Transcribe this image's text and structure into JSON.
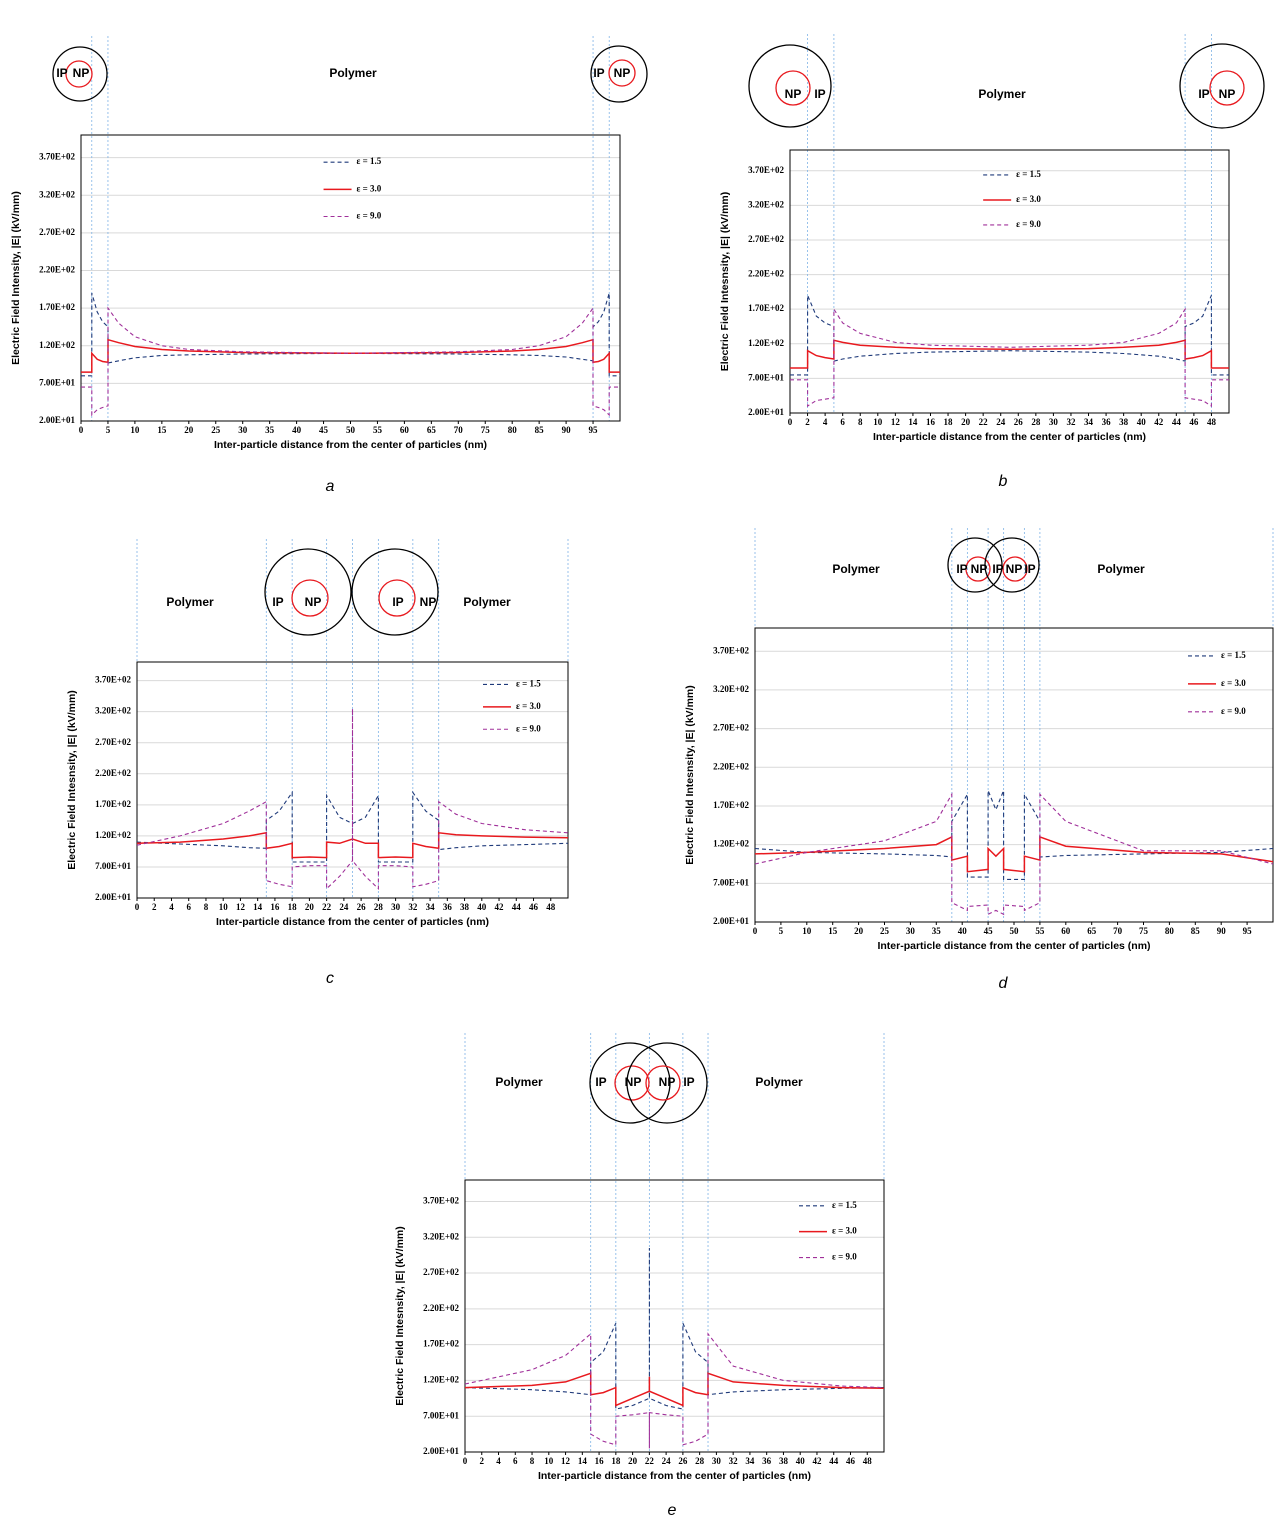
{
  "chart_data": [
    {
      "type": "line",
      "caption": "a",
      "annotations": [
        "IP",
        "NP",
        "Polymer",
        "IP",
        "NP"
      ],
      "xlabel": "Inter-particle distance from the center of particles (nm)",
      "ylabel": "Electric Field Intensity, |E| (kV/mm)",
      "xlim": [
        0,
        100
      ],
      "xticks": [
        0,
        5,
        10,
        15,
        20,
        25,
        30,
        35,
        40,
        45,
        50,
        55,
        60,
        65,
        70,
        75,
        80,
        85,
        90,
        95
      ],
      "ylim": [
        20,
        400
      ],
      "yticks": [
        {
          "value": 20,
          "label": "2.00E+01"
        },
        {
          "value": 70,
          "label": "7.00E+01"
        },
        {
          "value": 120,
          "label": "1.20E+02"
        },
        {
          "value": 170,
          "label": "1.70E+02"
        },
        {
          "value": 220,
          "label": "2.20E+02"
        },
        {
          "value": 270,
          "label": "2.70E+02"
        },
        {
          "value": 320,
          "label": "3.20E+02"
        },
        {
          "value": 370,
          "label": "3.70E+02"
        }
      ],
      "grid": true,
      "legend": "upper center",
      "x": [
        0,
        2,
        2,
        3,
        4,
        5,
        5,
        7,
        10,
        15,
        20,
        30,
        50,
        70,
        80,
        85,
        90,
        93,
        95,
        95,
        96,
        97,
        98,
        98,
        100
      ],
      "series": [
        {
          "name": "ε = 1.5",
          "color": "#1f3a7a",
          "linestyle": "dashed",
          "values": [
            80,
            80,
            190,
            165,
            152,
            145,
            97,
            100,
            104,
            107,
            108,
            109,
            110,
            109,
            108,
            107,
            105,
            102,
            100,
            145,
            152,
            165,
            190,
            80,
            80
          ]
        },
        {
          "name": "ε = 3.0",
          "color": "#e8191e",
          "linestyle": "solid",
          "values": [
            85,
            85,
            110,
            102,
            99,
            98,
            128,
            124,
            119,
            115,
            113,
            111,
            110,
            111,
            113,
            115,
            119,
            124,
            128,
            98,
            99,
            102,
            110,
            85,
            85
          ]
        },
        {
          "name": "ε = 9.0",
          "color": "#a0309a",
          "linestyle": "dashed",
          "values": [
            65,
            65,
            28,
            35,
            38,
            40,
            170,
            150,
            132,
            120,
            115,
            112,
            110,
            112,
            115,
            120,
            132,
            150,
            170,
            40,
            38,
            35,
            28,
            65,
            65
          ]
        }
      ]
    },
    {
      "type": "line",
      "caption": "b",
      "annotations": [
        "NP",
        "IP",
        "Polymer",
        "IP",
        "NP"
      ],
      "xlabel": "Inter-particle distance from the center of particles (nm)",
      "ylabel": "Electric Field Intesnsity, |E| (kV/mm)",
      "xlim": [
        0,
        50
      ],
      "xticks": [
        0,
        2,
        4,
        6,
        8,
        10,
        12,
        14,
        16,
        18,
        20,
        22,
        24,
        26,
        28,
        30,
        32,
        34,
        36,
        38,
        40,
        42,
        44,
        46,
        48
      ],
      "ylim": [
        20,
        400
      ],
      "yticks": [
        {
          "value": 20,
          "label": "2.00E+01"
        },
        {
          "value": 70,
          "label": "7.00E+01"
        },
        {
          "value": 120,
          "label": "1.20E+02"
        },
        {
          "value": 170,
          "label": "1.70E+02"
        },
        {
          "value": 220,
          "label": "2.20E+02"
        },
        {
          "value": 270,
          "label": "2.70E+02"
        },
        {
          "value": 320,
          "label": "3.20E+02"
        },
        {
          "value": 370,
          "label": "3.70E+02"
        }
      ],
      "grid": true,
      "legend": "upper center",
      "x": [
        0,
        2,
        2,
        3,
        4,
        5,
        5,
        6,
        8,
        12,
        16,
        25,
        34,
        38,
        42,
        44,
        45,
        45,
        46,
        47,
        48,
        48,
        50
      ],
      "series": [
        {
          "name": "ε = 1.5",
          "color": "#1f3a7a",
          "linestyle": "dashed",
          "values": [
            75,
            75,
            190,
            160,
            150,
            145,
            95,
            98,
            102,
            106,
            108,
            110,
            108,
            106,
            102,
            98,
            95,
            145,
            150,
            160,
            190,
            75,
            75
          ]
        },
        {
          "name": "ε = 3.0",
          "color": "#e8191e",
          "linestyle": "solid",
          "values": [
            85,
            85,
            110,
            103,
            100,
            98,
            125,
            122,
            118,
            115,
            113,
            112,
            113,
            115,
            118,
            122,
            125,
            98,
            100,
            103,
            110,
            85,
            85
          ]
        },
        {
          "name": "ε = 9.0",
          "color": "#a0309a",
          "linestyle": "dashed",
          "values": [
            68,
            68,
            30,
            38,
            40,
            42,
            170,
            150,
            135,
            122,
            118,
            115,
            118,
            122,
            135,
            150,
            170,
            42,
            40,
            38,
            30,
            68,
            68
          ]
        }
      ]
    },
    {
      "type": "line",
      "caption": "c",
      "annotations": [
        "Polymer",
        "IP",
        "NP",
        "IP",
        "NP",
        "Polymer"
      ],
      "xlabel": "Inter-particle distance from the center of particles (nm)",
      "ylabel": "Electric Field Intesnsity, |E| (kV/mm)",
      "xlim": [
        0,
        50
      ],
      "xticks": [
        0,
        2,
        4,
        6,
        8,
        10,
        12,
        14,
        16,
        18,
        20,
        22,
        24,
        26,
        28,
        30,
        32,
        34,
        36,
        38,
        40,
        42,
        44,
        46,
        48
      ],
      "ylim": [
        20,
        400
      ],
      "yticks": [
        {
          "value": 20,
          "label": "2.00E+01"
        },
        {
          "value": 70,
          "label": "7.00E+01"
        },
        {
          "value": 120,
          "label": "1.20E+02"
        },
        {
          "value": 170,
          "label": "1.70E+02"
        },
        {
          "value": 220,
          "label": "2.20E+02"
        },
        {
          "value": 270,
          "label": "2.70E+02"
        },
        {
          "value": 320,
          "label": "3.20E+02"
        },
        {
          "value": 370,
          "label": "3.70E+02"
        }
      ],
      "grid": true,
      "legend": "upper right",
      "x": [
        0,
        5,
        10,
        13,
        15,
        15,
        16.5,
        18,
        18,
        20,
        22,
        22,
        23.5,
        25,
        25,
        25,
        26.5,
        28,
        28,
        30,
        32,
        32,
        33.5,
        35,
        35,
        37,
        40,
        45,
        50
      ],
      "series": [
        {
          "name": "ε = 1.5",
          "color": "#1f3a7a",
          "linestyle": "dashed",
          "values": [
            110,
            107,
            104,
            101,
            100,
            145,
            160,
            190,
            78,
            78,
            78,
            185,
            150,
            140,
            140,
            140,
            150,
            185,
            78,
            78,
            78,
            190,
            160,
            145,
            98,
            101,
            104,
            106,
            108
          ]
        },
        {
          "name": "ε = 3.0",
          "color": "#e8191e",
          "linestyle": "solid",
          "values": [
            108,
            110,
            115,
            120,
            125,
            100,
            103,
            108,
            85,
            86,
            85,
            110,
            108,
            115,
            115,
            115,
            108,
            108,
            85,
            86,
            85,
            108,
            103,
            100,
            125,
            122,
            120,
            118,
            117
          ]
        },
        {
          "name": "ε = 9.0",
          "color": "#a0309a",
          "linestyle": "dashed",
          "values": [
            105,
            120,
            140,
            160,
            175,
            48,
            42,
            38,
            70,
            72,
            72,
            35,
            55,
            80,
            325,
            80,
            55,
            35,
            72,
            72,
            70,
            38,
            42,
            48,
            175,
            155,
            140,
            130,
            125
          ]
        }
      ]
    },
    {
      "type": "line",
      "caption": "d",
      "annotations": [
        "Polymer",
        "IP",
        "NP",
        "IP",
        "NP",
        "IP",
        "Polymer"
      ],
      "xlabel": "Inter-particle distance from the center of particles (nm)",
      "ylabel": "Electric Field Intesnsity, |E| (kV/mm)",
      "xlim": [
        0,
        100
      ],
      "xticks": [
        0,
        5,
        10,
        15,
        20,
        25,
        30,
        35,
        40,
        45,
        50,
        55,
        60,
        65,
        70,
        75,
        80,
        85,
        90,
        95
      ],
      "ylim": [
        20,
        400
      ],
      "yticks": [
        {
          "value": 20,
          "label": "2.00E+01"
        },
        {
          "value": 70,
          "label": "7.00E+01"
        },
        {
          "value": 120,
          "label": "1.20E+02"
        },
        {
          "value": 170,
          "label": "1.70E+02"
        },
        {
          "value": 220,
          "label": "2.20E+02"
        },
        {
          "value": 270,
          "label": "2.70E+02"
        },
        {
          "value": 320,
          "label": "3.20E+02"
        },
        {
          "value": 370,
          "label": "3.70E+02"
        }
      ],
      "grid": true,
      "legend": "upper right",
      "x": [
        0,
        10,
        25,
        35,
        38,
        38,
        41,
        41,
        45,
        45,
        46.5,
        48,
        48,
        52,
        52,
        55,
        55,
        60,
        75,
        90,
        100
      ],
      "series": [
        {
          "name": "ε = 1.5",
          "color": "#1f3a7a",
          "linestyle": "dashed",
          "values": [
            115,
            110,
            108,
            106,
            104,
            150,
            185,
            78,
            78,
            190,
            165,
            190,
            75,
            75,
            185,
            150,
            104,
            106,
            108,
            110,
            115
          ]
        },
        {
          "name": "ε = 3.0",
          "color": "#e8191e",
          "linestyle": "solid",
          "values": [
            108,
            110,
            115,
            120,
            130,
            100,
            105,
            85,
            88,
            115,
            105,
            115,
            88,
            85,
            105,
            100,
            130,
            118,
            110,
            108,
            98
          ]
        },
        {
          "name": "ε = 9.0",
          "color": "#a0309a",
          "linestyle": "dashed",
          "values": [
            95,
            110,
            125,
            150,
            185,
            45,
            35,
            40,
            42,
            30,
            35,
            30,
            42,
            40,
            35,
            45,
            185,
            150,
            112,
            112,
            95
          ]
        }
      ]
    },
    {
      "type": "line",
      "caption": "e",
      "annotations": [
        "Polymer",
        "IP",
        "NP",
        "NP",
        "IP",
        "Polymer"
      ],
      "xlabel": "Inter-particle distance from the center of particles (nm)",
      "ylabel": "Electric Field Intesnsity, |E| (kV/mm)",
      "xlim": [
        0,
        50
      ],
      "xticks": [
        0,
        2,
        4,
        6,
        8,
        10,
        12,
        14,
        16,
        18,
        20,
        22,
        24,
        26,
        28,
        30,
        32,
        34,
        36,
        38,
        40,
        42,
        44,
        46,
        48
      ],
      "ylim": [
        20,
        400
      ],
      "yticks": [
        {
          "value": 20,
          "label": "2.00E+01"
        },
        {
          "value": 70,
          "label": "7.00E+01"
        },
        {
          "value": 120,
          "label": "1.20E+02"
        },
        {
          "value": 170,
          "label": "1.70E+02"
        },
        {
          "value": 220,
          "label": "2.20E+02"
        },
        {
          "value": 270,
          "label": "2.70E+02"
        },
        {
          "value": 320,
          "label": "3.20E+02"
        },
        {
          "value": 370,
          "label": "3.70E+02"
        }
      ],
      "grid": true,
      "legend": "upper right",
      "x": [
        0,
        8,
        12,
        15,
        15,
        16.5,
        18,
        18,
        20,
        22,
        22,
        22,
        24,
        26,
        26,
        27.5,
        29,
        29,
        32,
        38,
        45,
        50
      ],
      "series": [
        {
          "name": "ε = 1.5",
          "color": "#1f3a7a",
          "linestyle": "dashed",
          "values": [
            110,
            107,
            104,
            100,
            145,
            160,
            200,
            80,
            85,
            95,
            305,
            95,
            85,
            80,
            200,
            160,
            145,
            100,
            104,
            107,
            109,
            110
          ]
        },
        {
          "name": "ε = 3.0",
          "color": "#e8191e",
          "linestyle": "solid",
          "values": [
            110,
            113,
            118,
            130,
            100,
            103,
            110,
            85,
            95,
            105,
            125,
            105,
            95,
            85,
            110,
            103,
            100,
            130,
            118,
            113,
            110,
            109
          ]
        },
        {
          "name": "ε = 9.0",
          "color": "#a0309a",
          "linestyle": "dashed",
          "values": [
            115,
            135,
            155,
            185,
            45,
            35,
            30,
            70,
            72,
            75,
            25,
            75,
            72,
            70,
            30,
            35,
            45,
            185,
            140,
            120,
            112,
            110
          ]
        }
      ]
    }
  ]
}
